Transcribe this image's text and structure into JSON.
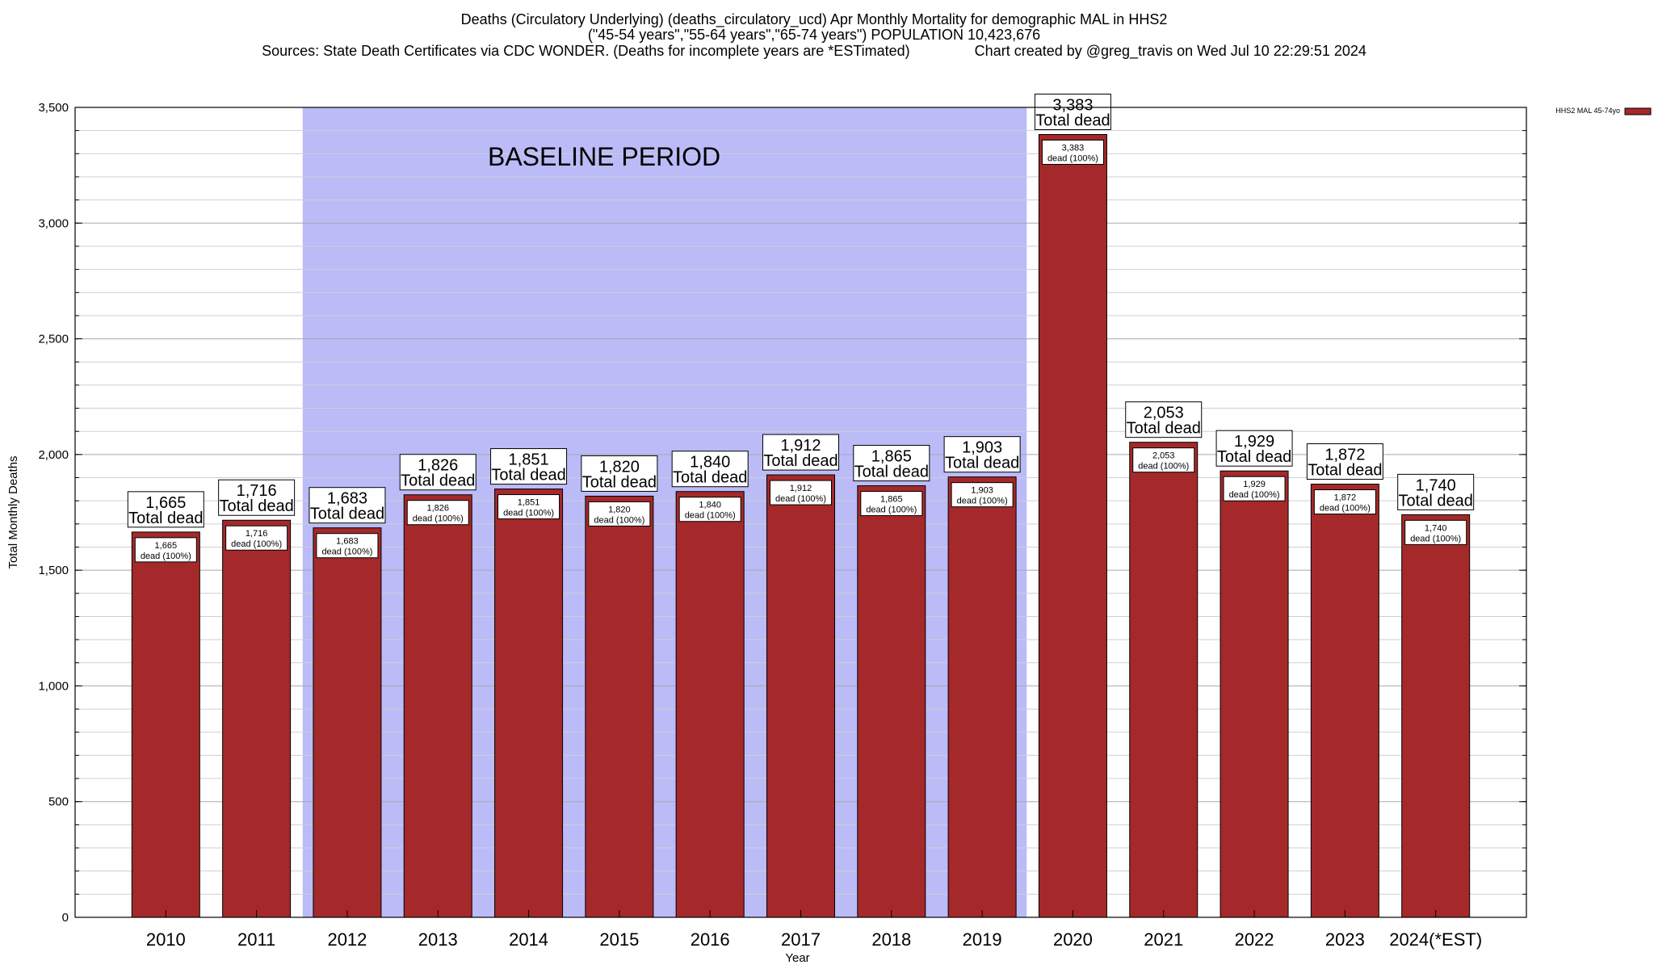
{
  "chart_data": {
    "type": "bar",
    "title_lines": [
      "Deaths (Circulatory Underlying) (deaths_circulatory_ucd) Apr Monthly Mortality for demographic MAL in HHS2",
      "(\"45-54 years\",\"55-64 years\",\"65-74 years\") POPULATION 10,423,676",
      "Sources: State Death Certificates via CDC WONDER. (Deaths for incomplete years are *ESTimated)                Chart created by @greg_travis on Wed Jul 10 22:29:51 2024"
    ],
    "xlabel": "Year",
    "ylabel": "Total Monthly Deaths",
    "ylim": [
      0,
      3500
    ],
    "yticks": [
      0,
      500,
      1000,
      1500,
      2000,
      2500,
      3000,
      3500
    ],
    "ytick_labels": [
      "0",
      "500",
      "1,000",
      "1,500",
      "2,000",
      "2,500",
      "3,000",
      "3,500"
    ],
    "grid": true,
    "legend_position": "top-right",
    "categories": [
      "2010",
      "2011",
      "2012",
      "2013",
      "2014",
      "2015",
      "2016",
      "2017",
      "2018",
      "2019",
      "2020",
      "2021",
      "2022",
      "2023",
      "2024(*EST)"
    ],
    "series": [
      {
        "name": "HHS2 MAL 45-74yo",
        "color": "#a5292a",
        "values": [
          1665,
          1716,
          1683,
          1826,
          1851,
          1820,
          1840,
          1912,
          1865,
          1903,
          3383,
          2053,
          1929,
          1872,
          1740
        ]
      }
    ],
    "total_labels": [
      "1,665",
      "1,716",
      "1,683",
      "1,826",
      "1,851",
      "1,820",
      "1,840",
      "1,912",
      "1,865",
      "1,903",
      "3,383",
      "2,053",
      "1,929",
      "1,872",
      "1,740"
    ],
    "total_suffix": "Total dead",
    "segment_suffix": "dead (100%)",
    "baseline": {
      "label": "BASELINE PERIOD",
      "from": "2012",
      "to": "2019",
      "color": "#bbbbf8"
    }
  }
}
